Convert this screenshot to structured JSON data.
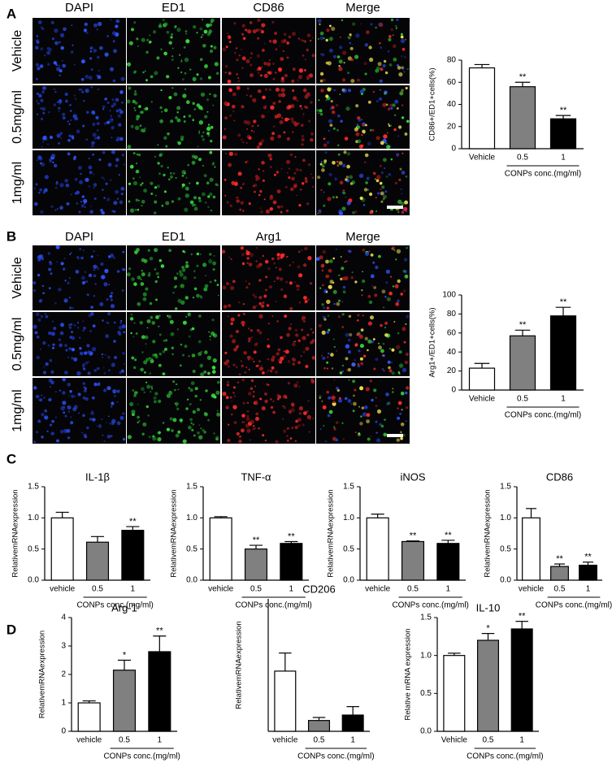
{
  "panels": [
    {
      "label": "A",
      "columns": [
        "DAPI",
        "ED1",
        "CD86",
        "Merge"
      ],
      "rows": [
        "Vehicle",
        "0.5mg/ml",
        "1mg/ml"
      ]
    },
    {
      "label": "B",
      "columns": [
        "DAPI",
        "ED1",
        "Arg1",
        "Merge"
      ],
      "rows": [
        "Vehicle",
        "0.5mg/ml",
        "1mg/ml"
      ]
    },
    {
      "label": "C"
    },
    {
      "label": "D"
    }
  ],
  "chart_data": [
    {
      "type": "bar",
      "ylabel": "CD86+/ED1+cells(%)",
      "xlabel": "CONPs conc.(mg/ml)",
      "categories": [
        "Vehicle",
        "0.5",
        "1"
      ],
      "values": [
        73,
        56,
        27
      ],
      "errors": [
        3,
        4,
        3
      ],
      "significance": [
        null,
        "**",
        "**"
      ],
      "colors": [
        "#ffffff",
        "#808080",
        "#000000"
      ],
      "ylim": [
        0,
        80
      ],
      "yticks": [
        0,
        20,
        40,
        60,
        80
      ]
    },
    {
      "type": "bar",
      "ylabel": "Arg1+/ED1+cells(%)",
      "xlabel": "CONPs conc.(mg/ml)",
      "categories": [
        "Vehicle",
        "0.5",
        "1"
      ],
      "values": [
        23,
        57,
        78
      ],
      "errors": [
        5,
        6,
        9
      ],
      "significance": [
        null,
        "**",
        "**"
      ],
      "colors": [
        "#ffffff",
        "#808080",
        "#000000"
      ],
      "ylim": [
        0,
        100
      ],
      "yticks": [
        0,
        20,
        40,
        60,
        80,
        100
      ]
    },
    {
      "type": "bar",
      "title": "IL-1β",
      "ylabel": "RelativemRNAexpression",
      "xlabel": "CONPs conc.(mg/ml)",
      "categories": [
        "vehicle",
        "0.5",
        "1"
      ],
      "values": [
        1.0,
        0.61,
        0.8
      ],
      "errors": [
        0.09,
        0.09,
        0.06
      ],
      "significance": [
        null,
        null,
        "**"
      ],
      "colors": [
        "#ffffff",
        "#808080",
        "#000000"
      ],
      "ylim": [
        0,
        1.5
      ],
      "yticks": [
        {
          "value": 0,
          "label": "0.0"
        },
        0.5,
        {
          "value": 1,
          "label": "1.0"
        },
        1.5
      ]
    },
    {
      "type": "bar",
      "title": "TNF-α",
      "ylabel": "RelativemRNAexpression",
      "xlabel": "CONPs conc.(mg/ml)",
      "categories": [
        "vehicle",
        "0.5",
        "1"
      ],
      "values": [
        1.0,
        0.5,
        0.59
      ],
      "errors": [
        0.02,
        0.06,
        0.03
      ],
      "significance": [
        null,
        "**",
        "**"
      ],
      "colors": [
        "#ffffff",
        "#808080",
        "#000000"
      ],
      "ylim": [
        0,
        1.5
      ],
      "yticks": [
        {
          "value": 0,
          "label": "0.0"
        },
        0.5,
        {
          "value": 1,
          "label": "1.0"
        },
        1.5
      ]
    },
    {
      "type": "bar",
      "title": "iNOS",
      "ylabel": "RelativemRNAexpression",
      "xlabel": "CONPs conc.(mg/ml)",
      "categories": [
        "vehicle",
        "0.5",
        "1"
      ],
      "values": [
        1.0,
        0.62,
        0.59
      ],
      "errors": [
        0.06,
        0.01,
        0.05
      ],
      "significance": [
        null,
        "**",
        "**"
      ],
      "colors": [
        "#ffffff",
        "#808080",
        "#000000"
      ],
      "ylim": [
        0,
        1.5
      ],
      "yticks": [
        {
          "value": 0,
          "label": "0.0"
        },
        0.5,
        {
          "value": 1,
          "label": "1.0"
        },
        1.5
      ]
    },
    {
      "type": "bar",
      "title": "CD86",
      "ylabel": "RelativemRNAexpression",
      "xlabel": "CONPs conc.(mg/ml)",
      "categories": [
        "vehicle",
        "0.5",
        "1"
      ],
      "values": [
        1.0,
        0.22,
        0.24
      ],
      "errors": [
        0.15,
        0.04,
        0.05
      ],
      "significance": [
        null,
        "**",
        "**"
      ],
      "colors": [
        "#ffffff",
        "#808080",
        "#000000"
      ],
      "ylim": [
        0,
        1.5
      ],
      "yticks": [
        {
          "value": 0,
          "label": "0.0"
        },
        0.5,
        {
          "value": 1,
          "label": "1.0"
        },
        1.5
      ]
    },
    {
      "type": "bar",
      "title": "Arg-1",
      "ylabel": "RelativemRNAexpression",
      "xlabel": "CONPs conc.(mg/ml)",
      "categories": [
        "vehicle",
        "0.5",
        "1"
      ],
      "values": [
        1.0,
        2.15,
        2.8
      ],
      "errors": [
        0.07,
        0.35,
        0.55
      ],
      "significance": [
        null,
        "*",
        "**"
      ],
      "colors": [
        "#ffffff",
        "#808080",
        "#000000"
      ],
      "ylim": [
        0,
        4
      ],
      "yticks": [
        0,
        1,
        2,
        3,
        4
      ]
    },
    {
      "type": "bar",
      "title": "CD206",
      "ylabel": "RelativemRNAexpression",
      "xlabel": "CONPs conc.(mg/ml)",
      "categories": [
        "vehicle",
        "0.5",
        "1"
      ],
      "values": [
        1.0,
        0.18,
        0.27
      ],
      "errors": [
        0.3,
        0.05,
        0.14
      ],
      "significance": [
        null,
        null,
        null
      ],
      "colors": [
        "#ffffff",
        "#808080",
        "#000000"
      ],
      "ylim": [
        0,
        2.2
      ]
    },
    {
      "type": "bar",
      "title": "IL-10",
      "ylabel": "Relative mRNA expression",
      "xlabel": "CONPs conc.(mg/ml)",
      "categories": [
        "Vehicle",
        "0.5",
        "1"
      ],
      "values": [
        1.0,
        1.2,
        1.35
      ],
      "errors": [
        0.03,
        0.09,
        0.1
      ],
      "significance": [
        null,
        "*",
        "**"
      ],
      "colors": [
        "#ffffff",
        "#808080",
        "#000000"
      ],
      "ylim": [
        0,
        1.5
      ],
      "yticks": [
        {
          "value": 0,
          "label": "0.0"
        },
        0.5,
        {
          "value": 1,
          "label": "1.0"
        },
        1.5
      ]
    }
  ]
}
